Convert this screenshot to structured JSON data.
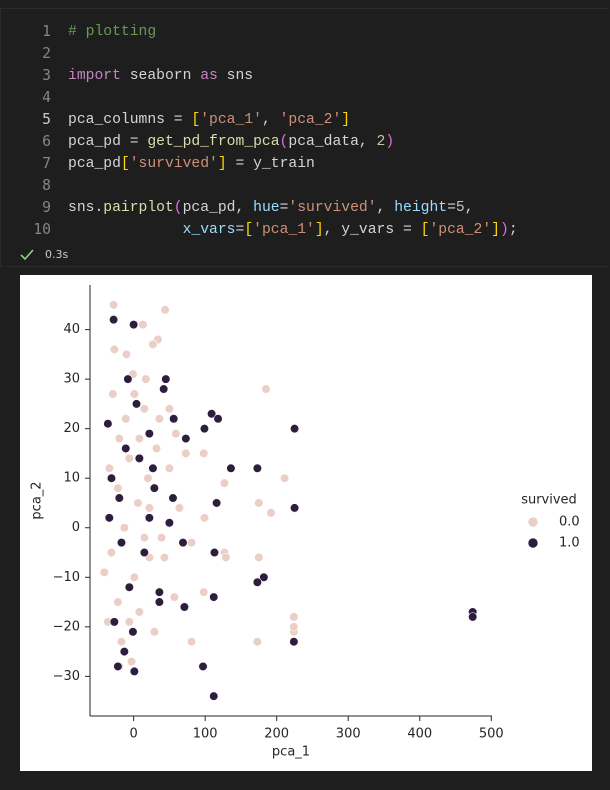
{
  "code": {
    "lines": [
      {
        "number": 1,
        "code": "# plotting"
      },
      {
        "number": 2
      },
      {
        "number": 3,
        "code": "import seaborn as sns"
      },
      {
        "number": 4
      },
      {
        "number": 5,
        "code": "pca_columns = ['pca_1', 'pca_2']"
      },
      {
        "number": 6,
        "code": "pca_pd = get_pd_from_pca(pca_data, 2)"
      },
      {
        "number": 7,
        "code": "pca_pd['survived'] = y_train"
      },
      {
        "number": 8
      },
      {
        "number": 9,
        "code": "sns.pairplot(pca_pd, hue='survived', height=5,"
      },
      {
        "number": 10,
        "code": "             x_vars=['pca_1'], y_vars = ['pca_2']);"
      }
    ],
    "status": "0.3s"
  },
  "chart_data": {
    "type": "scatter",
    "x_label": "pca_1",
    "y_label": "pca_2",
    "xlim": [
      -61,
      501
    ],
    "ylim": [
      -38,
      49
    ],
    "xticks": [
      0,
      100,
      200,
      300,
      400,
      500
    ],
    "yticks": [
      {
        "value": -30,
        "label": "−30"
      },
      {
        "value": -20,
        "label": "−20"
      },
      {
        "value": -10,
        "label": "−10"
      },
      0,
      10,
      20,
      30,
      40
    ],
    "legend_title": "survived",
    "legend": "right",
    "series": [
      {
        "name": "0.0",
        "color": "#ebcfc6",
        "x": [
          -28,
          44,
          13,
          34,
          185,
          59,
          73,
          98,
          127,
          211,
          175,
          99,
          192,
          81,
          127,
          175,
          129,
          224,
          224,
          224,
          173,
          81,
          98,
          57,
          17,
          -10,
          -27,
          1,
          15,
          36,
          -20,
          -6,
          -34,
          -22,
          6,
          22,
          -13,
          -31,
          15,
          43,
          -41,
          1,
          -22,
          8,
          -36,
          -17,
          -3,
          -20,
          29,
          50,
          32,
          20,
          64,
          39,
          8,
          -11,
          -29,
          -1,
          27,
          50,
          22,
          -6
        ],
        "y": [
          45,
          44,
          41,
          38,
          28,
          19,
          15,
          15,
          9,
          10,
          5,
          2,
          3,
          -3,
          -5,
          -6,
          -6,
          -18,
          -21,
          -20,
          -23,
          -23,
          -13,
          -14,
          30,
          35,
          36,
          27,
          24,
          22,
          18,
          14,
          12,
          8,
          5,
          4,
          0,
          -5,
          -2,
          -6,
          -9,
          -10,
          -15,
          -17,
          -19,
          -23,
          -27,
          -28,
          -21,
          12,
          16,
          10,
          4,
          -2,
          18,
          22,
          27,
          31,
          37,
          24,
          -6,
          -19
        ]
      },
      {
        "name": "1.0",
        "color": "#2d1e3e",
        "x": [
          -28,
          0,
          -8,
          45,
          42,
          56,
          99,
          109,
          118,
          225,
          136,
          173,
          55,
          116,
          225,
          22,
          69,
          113,
          182,
          173,
          112,
          71,
          474,
          474,
          -1,
          224,
          97,
          112,
          1,
          -22,
          -31,
          -20,
          -11,
          -34,
          8,
          27,
          15,
          36,
          -36,
          -17,
          -6,
          4,
          22,
          -27,
          -13,
          36,
          50,
          29,
          73
        ],
        "y": [
          42,
          41,
          30,
          30,
          28,
          22,
          20,
          23,
          22,
          20,
          12,
          12,
          6,
          5,
          4,
          2,
          -3,
          -5,
          -10,
          -11,
          -14,
          -16,
          -17,
          -18,
          -21,
          -23,
          -28,
          -34,
          -29,
          -28,
          10,
          6,
          16,
          2,
          14,
          12,
          -5,
          -13,
          21,
          -3,
          -12,
          25,
          19,
          -19,
          -25,
          -15,
          1,
          8,
          18
        ]
      }
    ]
  }
}
